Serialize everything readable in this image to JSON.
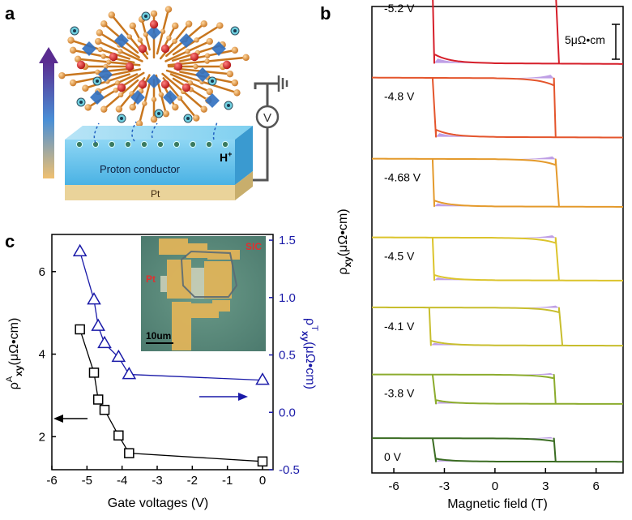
{
  "panel_a": {
    "letter": "a",
    "label_hplus": "H",
    "label_hplus_sup": "+",
    "label_conductor": "Proton conductor",
    "label_pt": "Pt",
    "meter_symbol": "V"
  },
  "panel_b": {
    "letter": "b",
    "scale_bar_label": "5μΩ•cm",
    "ylabel_main": "ρ",
    "ylabel_sub": "xy",
    "ylabel_unit": "(μΩ•cm)",
    "xlabel": "Magnetic field (T)"
  },
  "panel_c": {
    "letter": "c",
    "xlabel": "Gate voltages (V)",
    "ylabel_left_main": "ρ",
    "ylabel_left_sup": "A",
    "ylabel_left_sub": "xy",
    "ylabel_left_unit": "(μΩ•cm)",
    "ylabel_right_main": "ρ",
    "ylabel_right_sup": "T",
    "ylabel_right_sub": "xy",
    "ylabel_right_unit": "(μΩ•cm)",
    "inset_label_sic": "SIC",
    "inset_label_pt": "Pt",
    "inset_scale_label": "10um"
  },
  "colors": {
    "left_series": "#000000",
    "right_series": "#1a1aa8",
    "purple_fill": "#b48ee0"
  },
  "chart_data": [
    {
      "id": "b",
      "type": "line",
      "xlabel": "Magnetic field (T)",
      "ylabel": "ρxy(μΩ•cm)",
      "xlim": [
        -7.3,
        7.6
      ],
      "x_ticks": [
        -6,
        -3,
        0,
        3,
        6
      ],
      "x_tick_labels": [
        "-6",
        "-3",
        "0",
        "3",
        "6"
      ],
      "scale_bar": "5μΩ•cm",
      "series": [
        {
          "name": "-5.2 V",
          "color": "#d61f2a",
          "coercive_field_T": 3.6,
          "amplitude": 7.6,
          "offset": 0
        },
        {
          "name": "-4.8 V",
          "color": "#e4552c",
          "coercive_field_T": 3.5,
          "amplitude": 6.1,
          "offset": -8.4
        },
        {
          "name": "-4.68 V",
          "color": "#e49a2c",
          "coercive_field_T": 3.6,
          "amplitude": 4.9,
          "offset": -16.2
        },
        {
          "name": "-4.5 V",
          "color": "#dcc42c",
          "coercive_field_T": 3.6,
          "amplitude": 4.4,
          "offset": -24.1
        },
        {
          "name": "-4.1 V",
          "color": "#c8be2e",
          "coercive_field_T": 3.8,
          "amplitude": 3.9,
          "offset": -31.1
        },
        {
          "name": "-3.8 V",
          "color": "#8cac2e",
          "coercive_field_T": 3.5,
          "amplitude": 3.0,
          "offset": -37.6
        },
        {
          "name": "0 V",
          "color": "#3a6c22",
          "coercive_field_T": 3.5,
          "amplitude": 2.4,
          "offset": -43.9
        }
      ]
    },
    {
      "id": "c",
      "type": "scatter",
      "xlabel": "Gate voltages (V)",
      "xlim": [
        -6,
        0.3
      ],
      "x_ticks": [
        -6,
        -5,
        -4,
        -3,
        -2,
        -1,
        0
      ],
      "ylim_left": [
        1.2,
        6.9
      ],
      "y_ticks_left": [
        2,
        4,
        6
      ],
      "ylim_right": [
        -0.5,
        1.55
      ],
      "y_ticks_right": [
        -0.5,
        0.0,
        0.5,
        1.0,
        1.5
      ],
      "y_ticks_right_labels": [
        "-0.5",
        "0.0",
        "0.5",
        "1.0",
        "1.5"
      ],
      "series": [
        {
          "name": "ρA_xy",
          "axis": "left",
          "marker": "square",
          "color": "#000000",
          "x": [
            -5.2,
            -4.8,
            -4.68,
            -4.5,
            -4.1,
            -3.8,
            0
          ],
          "y": [
            4.6,
            3.55,
            2.9,
            2.65,
            2.03,
            1.6,
            1.4
          ]
        },
        {
          "name": "ρT_xy",
          "axis": "right",
          "marker": "triangle",
          "color": "#1a1aa8",
          "x": [
            -5.2,
            -4.8,
            -4.68,
            -4.5,
            -4.1,
            -3.8,
            0
          ],
          "y": [
            1.4,
            0.98,
            0.75,
            0.6,
            0.48,
            0.33,
            0.28
          ]
        }
      ]
    }
  ]
}
